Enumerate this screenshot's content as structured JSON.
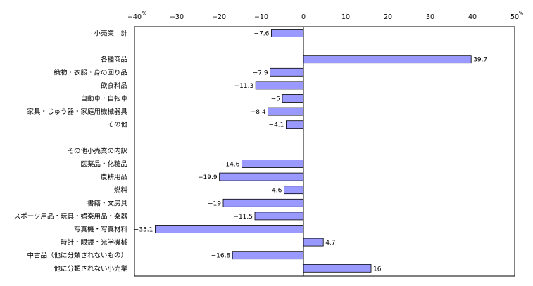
{
  "chart_data": {
    "type": "bar",
    "orientation": "horizontal",
    "unit": "%",
    "xlim": [
      -40,
      50
    ],
    "x_ticks": [
      "−40",
      "−30",
      "−20",
      "−10",
      "0",
      "10",
      "20",
      "30",
      "40",
      "50"
    ],
    "grid": false,
    "legend": "none",
    "bar_color": "#9999ff",
    "categories": [
      "小売業　計",
      "",
      "各種商品",
      "織物・衣服・身の回り品",
      "飲食料品",
      "自動車・自転車",
      "家具・じゅう器・家庭用機械器具",
      "その他",
      "",
      "その他小売業の内訳",
      "医薬品・化粧品",
      "農耕用品",
      "燃料",
      "書籍・文房具",
      "スポーツ用品・玩具・娯楽用品・楽器",
      "写真機・写真材料",
      "時計・眼鏡・光学機械",
      "中古品（他に分類されないもの）",
      "他に分類されない小売業"
    ],
    "values": [
      -7.6,
      null,
      39.7,
      -7.9,
      -11.3,
      -5,
      -8.4,
      -4.1,
      null,
      null,
      -14.6,
      -19.9,
      -4.6,
      -19,
      -11.5,
      -35.1,
      4.7,
      -16.8,
      16
    ],
    "value_labels": [
      "−7.6",
      "",
      "39.7",
      "−7.9",
      "−11.3",
      "−5",
      "−8.4",
      "−4.1",
      "",
      "",
      "−14.6",
      "−19.9",
      "−4.6",
      "−19",
      "−11.5",
      "−35.1",
      "4.7",
      "−16.8",
      "16"
    ]
  }
}
